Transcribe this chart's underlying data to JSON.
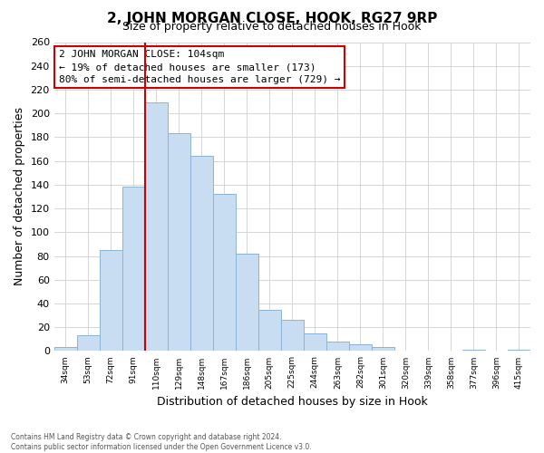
{
  "title": "2, JOHN MORGAN CLOSE, HOOK, RG27 9RP",
  "subtitle": "Size of property relative to detached houses in Hook",
  "xlabel": "Distribution of detached houses by size in Hook",
  "ylabel": "Number of detached properties",
  "bar_labels": [
    "34sqm",
    "53sqm",
    "72sqm",
    "91sqm",
    "110sqm",
    "129sqm",
    "148sqm",
    "167sqm",
    "186sqm",
    "205sqm",
    "225sqm",
    "244sqm",
    "263sqm",
    "282sqm",
    "301sqm",
    "320sqm",
    "339sqm",
    "358sqm",
    "377sqm",
    "396sqm",
    "415sqm"
  ],
  "bar_values": [
    3,
    13,
    85,
    138,
    209,
    183,
    164,
    132,
    82,
    35,
    26,
    15,
    8,
    6,
    3,
    0,
    0,
    0,
    1,
    0,
    1
  ],
  "bar_color": "#c8ddf2",
  "bar_edge_color": "#8ab4d8",
  "vline_color": "#cc0000",
  "annotation_title": "2 JOHN MORGAN CLOSE: 104sqm",
  "annotation_line1": "← 19% of detached houses are smaller (173)",
  "annotation_line2": "80% of semi-detached houses are larger (729) →",
  "annotation_box_color": "white",
  "annotation_box_edge": "#cc0000",
  "ylim": [
    0,
    260
  ],
  "yticks": [
    0,
    20,
    40,
    60,
    80,
    100,
    120,
    140,
    160,
    180,
    200,
    220,
    240,
    260
  ],
  "footnote1": "Contains HM Land Registry data © Crown copyright and database right 2024.",
  "footnote2": "Contains public sector information licensed under the Open Government Licence v3.0.",
  "bg_color": "#ffffff",
  "plot_bg_color": "#ffffff",
  "grid_color": "#d0d0d0"
}
